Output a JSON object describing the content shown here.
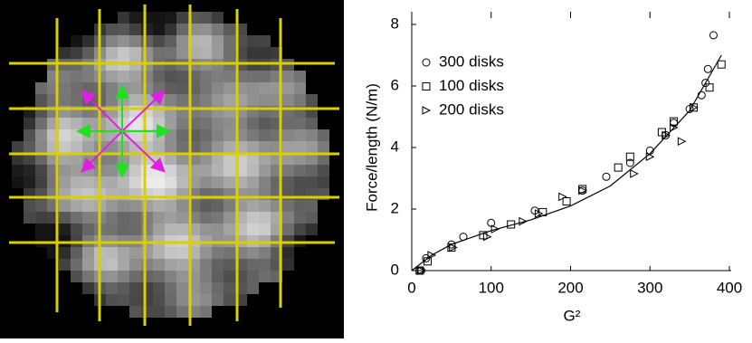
{
  "chart_data": {
    "type": "scatter",
    "x_label": "G²",
    "y_label": "Force/length (N/m)",
    "xlim": [
      0,
      400
    ],
    "ylim": [
      0,
      8
    ],
    "xticks": [
      0,
      100,
      200,
      300,
      400
    ],
    "yticks": [
      0,
      2,
      4,
      6,
      8
    ],
    "legend": "upper left",
    "series": [
      {
        "name": "300 disks",
        "marker": "circle",
        "color": "#000000",
        "x": [
          10,
          12,
          18,
          50,
          65,
          100,
          155,
          215,
          245,
          275,
          300,
          320,
          330,
          350,
          365,
          370,
          373,
          380
        ],
        "values": [
          0,
          0,
          0.4,
          0.85,
          1.1,
          1.55,
          1.95,
          2.6,
          3.05,
          3.5,
          3.9,
          4.4,
          4.8,
          5.25,
          5.7,
          6.1,
          6.55,
          7.65
        ]
      },
      {
        "name": "100 disks",
        "marker": "square",
        "color": "#000000",
        "x": [
          10,
          20,
          50,
          90,
          125,
          165,
          195,
          215,
          260,
          275,
          315,
          330,
          355,
          375,
          390
        ],
        "values": [
          0,
          0.3,
          0.75,
          1.15,
          1.5,
          1.9,
          2.25,
          2.65,
          3.35,
          3.7,
          4.5,
          4.85,
          5.3,
          5.95,
          6.7
        ]
      },
      {
        "name": "200 disks",
        "marker": "triangle-right",
        "color": "#000000",
        "x": [
          12,
          25,
          52,
          95,
          105,
          140,
          160,
          190,
          215,
          280,
          300,
          320,
          330,
          340,
          355
        ],
        "values": [
          0,
          0.5,
          0.75,
          1.1,
          1.35,
          1.6,
          1.85,
          2.4,
          2.6,
          3.15,
          3.7,
          4.4,
          4.65,
          4.2,
          5.3
        ]
      }
    ],
    "fit_line": {
      "color": "#000000",
      "x": [
        0,
        25,
        50,
        100,
        150,
        200,
        250,
        300,
        350,
        390
      ],
      "values": [
        0,
        0.5,
        0.85,
        1.3,
        1.65,
        2.1,
        2.75,
        3.8,
        5.2,
        7.0
      ]
    }
  }
}
